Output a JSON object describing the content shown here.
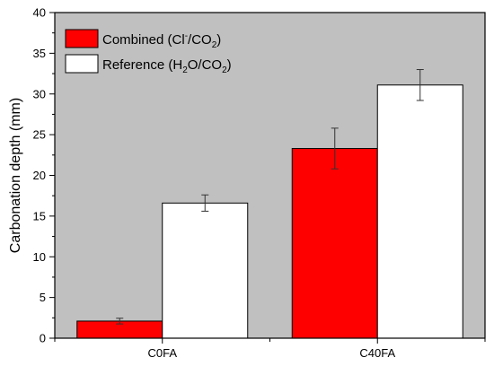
{
  "chart_data": {
    "type": "bar",
    "categories": [
      "C0FA",
      "C40FA"
    ],
    "series": [
      {
        "name_parts": [
          {
            "t": "Combined (Cl"
          },
          {
            "t": "-",
            "pos": "super"
          },
          {
            "t": "/CO"
          },
          {
            "t": "2",
            "pos": "sub"
          },
          {
            "t": ")"
          }
        ],
        "color": "#ff0000",
        "values": [
          2.1,
          23.3
        ],
        "errors": [
          0.35,
          2.5
        ]
      },
      {
        "name_parts": [
          {
            "t": "Reference (H"
          },
          {
            "t": "2",
            "pos": "sub"
          },
          {
            "t": "O/CO"
          },
          {
            "t": "2",
            "pos": "sub"
          },
          {
            "t": ")"
          }
        ],
        "color": "#ffffff",
        "values": [
          16.6,
          31.1
        ],
        "errors": [
          1.0,
          1.9
        ]
      }
    ],
    "xlabel": "",
    "ylabel": "Carbonation depth (mm)",
    "ylim": [
      0,
      40
    ],
    "yticks": [
      0,
      5,
      10,
      15,
      20,
      25,
      30,
      35,
      40
    ],
    "background_color": "#c0c0c0",
    "legend_position": "top-left",
    "grid": false
  }
}
